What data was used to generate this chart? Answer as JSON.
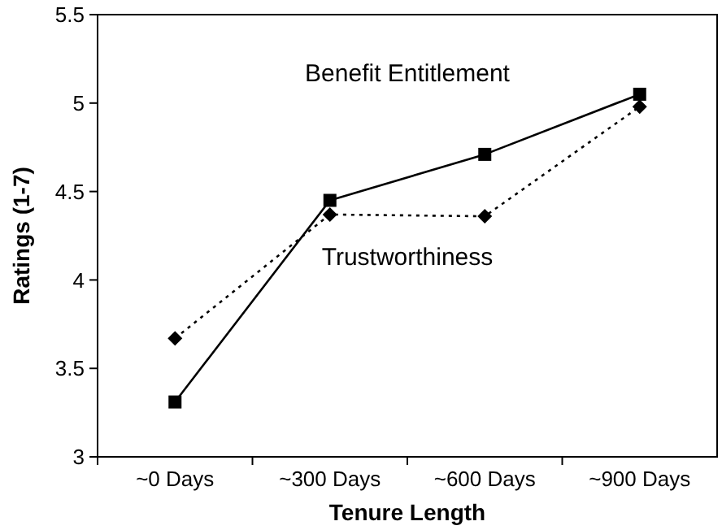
{
  "chart_data": {
    "type": "line",
    "xlabel": "Tenure Length",
    "ylabel": "Ratings (1-7)",
    "categories": [
      "~0 Days",
      "~300 Days",
      "~600 Days",
      "~900 Days"
    ],
    "series": [
      {
        "name": "Benefit Entitlement",
        "color": "#000000",
        "values": [
          3.31,
          4.45,
          4.71,
          5.05
        ],
        "marker": "square",
        "line_style": "solid"
      },
      {
        "name": "Trustworthiness",
        "color": "#000000",
        "values": [
          3.67,
          4.37,
          4.36,
          4.98
        ],
        "marker": "diamond",
        "line_style": "dotted"
      }
    ],
    "ylim": [
      3,
      5.5
    ],
    "yticks": [
      3,
      3.5,
      4,
      4.5,
      5,
      5.5
    ],
    "grid": false
  }
}
